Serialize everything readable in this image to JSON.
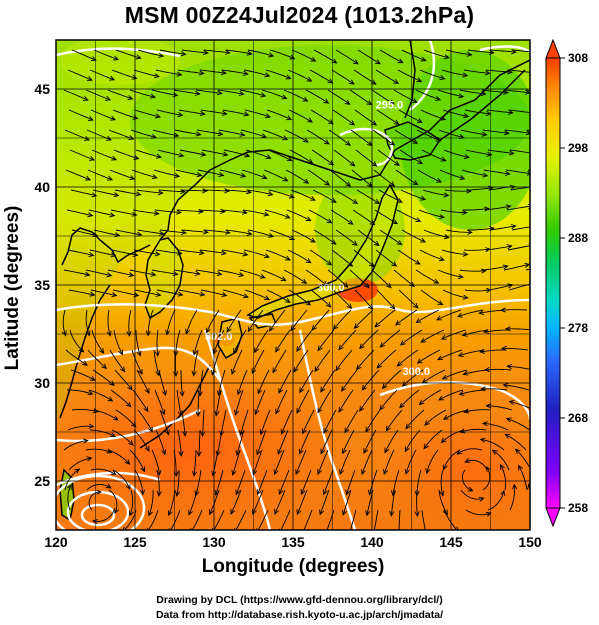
{
  "title": "MSM 00Z24Jul2024 (1013.2hPa)",
  "map": {
    "xlabel": "Longitude (degrees)",
    "ylabel": "Latitude  (degrees)",
    "lon_range": [
      120,
      150
    ],
    "lat_range": [
      22.5,
      47.5
    ],
    "lon_ticks": [
      "120",
      "125",
      "130",
      "135",
      "140",
      "145",
      "150"
    ],
    "lat_ticks": [
      "25",
      "30",
      "35",
      "40",
      "45"
    ],
    "contour_labels": [
      {
        "text": "302.0",
        "lon": 130.3,
        "lat": 32.2
      },
      {
        "text": "300.0",
        "lon": 137.4,
        "lat": 34.7
      },
      {
        "text": "300.0",
        "lon": 142.8,
        "lat": 30.4
      },
      {
        "text": "295.0",
        "lon": 141.1,
        "lat": 44.0
      }
    ],
    "cyclone_center": {
      "lon": 122.8,
      "lat": 23.7
    }
  },
  "colorbar": {
    "min": 258,
    "max": 308,
    "tick_labels": [
      "308",
      "298",
      "288",
      "278",
      "268",
      "258"
    ],
    "tick_values": [
      308,
      298,
      288,
      278,
      268,
      258
    ],
    "colors": [
      "#ff00ff",
      "#8000ff",
      "#2020c0",
      "#2a6cff",
      "#00b4ff",
      "#00d8c8",
      "#00cc66",
      "#33cc00",
      "#99e600",
      "#e6f000",
      "#ffcc00",
      "#ff8c00",
      "#ff4000"
    ]
  },
  "credits": {
    "line1": "Drawing by DCL (https://www.gfd-dennou.org/library/dcl/)",
    "line2": "Data from http://database.rish.kyoto-u.ac.jp/arch/jmadata/"
  }
}
